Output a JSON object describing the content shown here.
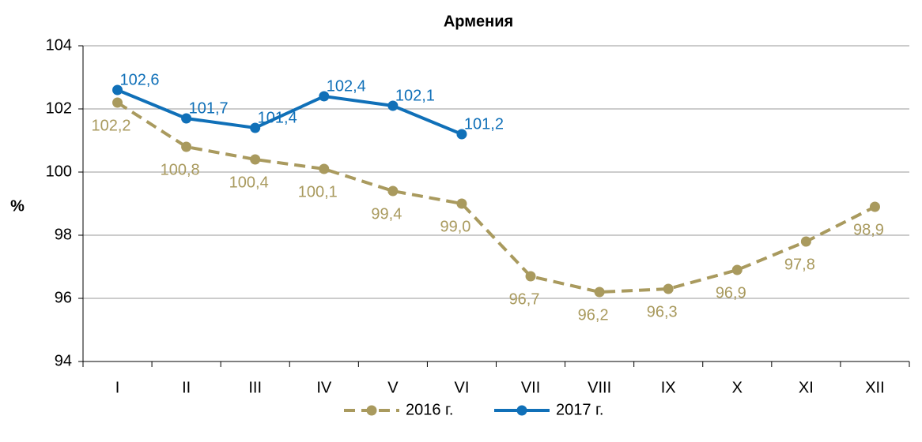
{
  "chart_data": {
    "type": "line",
    "title": "Армения",
    "y_label": "%",
    "categories": [
      "I",
      "II",
      "III",
      "IV",
      "V",
      "VI",
      "VII",
      "VIII",
      "IX",
      "X",
      "XI",
      "XII"
    ],
    "series": [
      {
        "name": "2016 г.",
        "color": "#a99a5e",
        "line_style": "dashed",
        "values": [
          102.2,
          100.8,
          100.4,
          100.1,
          99.4,
          99.0,
          96.7,
          96.2,
          96.3,
          96.9,
          97.8,
          98.9
        ],
        "value_labels": [
          "102,2",
          "100,8",
          "100,4",
          "100,1",
          "99,4",
          "99,0",
          "96,7",
          "96,2",
          "96,3",
          "96,9",
          "97,8",
          "98,9"
        ]
      },
      {
        "name": "2017 г.",
        "color": "#1070b8",
        "line_style": "solid",
        "values": [
          102.6,
          101.7,
          101.4,
          102.4,
          102.1,
          101.2,
          null,
          null,
          null,
          null,
          null,
          null
        ],
        "value_labels": [
          "102,6",
          "101,7",
          "101,4",
          "102,4",
          "102,1",
          "101,2",
          null,
          null,
          null,
          null,
          null,
          null
        ]
      }
    ],
    "ylim": [
      94,
      104
    ],
    "yticks": [
      94,
      96,
      98,
      100,
      102,
      104
    ],
    "grid": true,
    "legend": "bottom"
  }
}
